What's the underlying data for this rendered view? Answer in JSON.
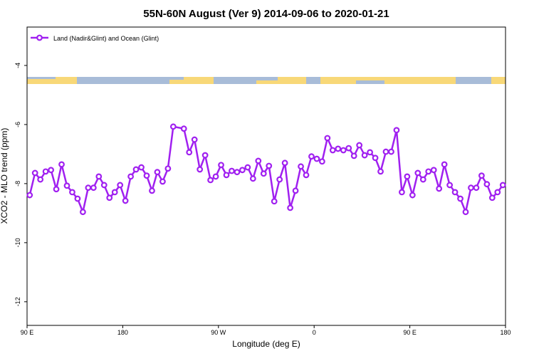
{
  "chart_data": {
    "type": "line",
    "title": "55N-60N August (Ver 9)   2014-09-06 to 2020-01-21",
    "x_label": "Longitude (deg E)",
    "y_label": "XCO2 - MLO trend (ppm)",
    "xlim": [
      90,
      540
    ],
    "xticks": [
      {
        "value": 90,
        "label": "90 E"
      },
      {
        "value": 180,
        "label": "180"
      },
      {
        "value": 270,
        "label": "90 W"
      },
      {
        "value": 360,
        "label": "0"
      },
      {
        "value": 450,
        "label": "90 E"
      },
      {
        "value": 540,
        "label": "180"
      }
    ],
    "ylim": [
      -12.8,
      -2.7
    ],
    "yticks": [
      -4,
      -6,
      -8,
      -10,
      -12
    ],
    "legend": "top-left",
    "series": [
      {
        "name": "Land (Nadir&Glint) and Ocean (Glint)",
        "color": "#a020f0",
        "x": [
          92.5,
          97.5,
          102.5,
          107.5,
          112.5,
          117.5,
          122.5,
          127.5,
          132.5,
          137.5,
          142.5,
          147.5,
          152.5,
          157.5,
          162.5,
          167.5,
          172.5,
          177.5,
          182.5,
          187.5,
          192.5,
          197.5,
          202.5,
          207.5,
          212.5,
          217.5,
          222.5,
          227.5,
          237.5,
          242.5,
          247.5,
          252.5,
          257.5,
          262.5,
          267.5,
          272.5,
          277.5,
          282.5,
          287.5,
          292.5,
          297.5,
          302.5,
          307.5,
          312.5,
          317.5,
          322.5,
          327.5,
          332.5,
          337.5,
          342.5,
          347.5,
          352.5,
          357.5,
          362.5,
          367.5,
          372.5,
          377.5,
          382.5,
          387.5,
          392.5,
          397.5,
          402.5,
          407.5,
          412.5,
          417.5,
          422.5,
          427.5,
          432.5,
          437.5,
          442.5,
          447.5,
          452.5,
          457.5,
          462.5,
          467.5,
          472.5,
          477.5,
          482.5,
          487.5,
          492.5,
          497.5,
          502.5,
          507.5,
          512.5,
          517.5,
          522.5,
          527.5,
          532.5,
          537.5
        ],
        "values": [
          -8.39,
          -7.64,
          -7.86,
          -7.59,
          -7.54,
          -8.19,
          -7.35,
          -8.07,
          -8.29,
          -8.51,
          -8.96,
          -8.14,
          -8.14,
          -7.76,
          -8.05,
          -8.48,
          -8.29,
          -8.05,
          -8.58,
          -7.76,
          -7.52,
          -7.45,
          -7.73,
          -8.24,
          -7.61,
          -7.93,
          -7.49,
          -6.07,
          -6.14,
          -6.94,
          -6.51,
          -7.52,
          -7.04,
          -7.88,
          -7.76,
          -7.37,
          -7.71,
          -7.57,
          -7.61,
          -7.54,
          -7.45,
          -7.83,
          -7.23,
          -7.66,
          -7.4,
          -8.6,
          -7.86,
          -7.3,
          -8.82,
          -8.24,
          -7.42,
          -7.71,
          -7.08,
          -7.16,
          -7.25,
          -6.46,
          -6.87,
          -6.82,
          -6.87,
          -6.8,
          -7.06,
          -6.7,
          -7.04,
          -6.94,
          -7.13,
          -7.59,
          -6.92,
          -6.92,
          -6.19,
          -8.29,
          -7.76,
          -8.39,
          -7.64,
          -7.86,
          -7.59,
          -7.54,
          -8.17,
          -7.35,
          -8.05,
          -8.29,
          -8.51,
          -8.96,
          -8.14,
          -8.14,
          -7.73,
          -8.02,
          -8.48,
          -8.29,
          -8.05
        ]
      }
    ]
  }
}
